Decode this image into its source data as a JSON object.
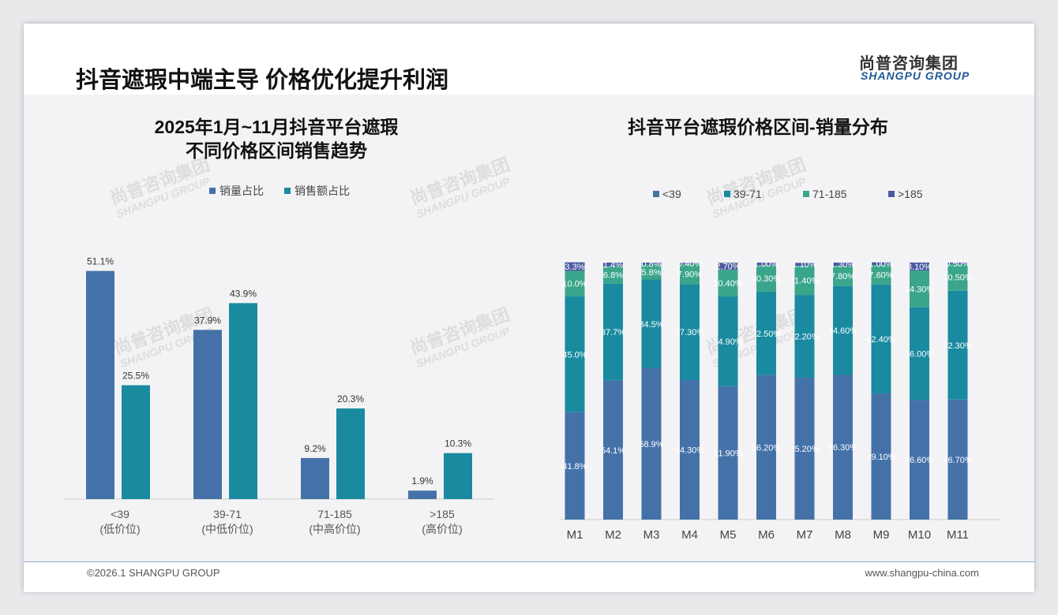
{
  "header": {
    "title": "抖音遮瑕中端主导 价格优化提升利润",
    "logo_cn": "尚普咨询集团",
    "logo_en": "SHANGPU GROUP"
  },
  "footer": {
    "copyright": "©2026.1 SHANGPU GROUP",
    "website": "www.shangpu-china.com"
  },
  "watermark": {
    "cn": "尚普咨询集团",
    "en": "SHANGPU GROUP"
  },
  "colors": {
    "lt39": "#4472a8",
    "r39_71": "#1a8aa0",
    "r71_185": "#3aa58a",
    "gt185": "#4b5aa0"
  },
  "chart_data": [
    {
      "type": "bar",
      "title_line1": "2025年1月~11月抖音平台遮瑕",
      "title_line2": "不同价格区间销售趋势",
      "categories": [
        "<39",
        "39-71",
        "71-185",
        ">185"
      ],
      "category_sub": [
        "(低价位)",
        "(中低价位)",
        "(中高价位)",
        "(高价位)"
      ],
      "series": [
        {
          "name": "销量占比",
          "values": [
            51.1,
            37.9,
            9.2,
            1.9
          ],
          "labels": [
            "51.1%",
            "37.9%",
            "9.2%",
            "1.9%"
          ]
        },
        {
          "name": "销售额占比",
          "values": [
            25.5,
            43.9,
            20.3,
            10.3
          ],
          "labels": [
            "25.5%",
            "43.9%",
            "20.3%",
            "10.3%"
          ]
        }
      ],
      "ylim": [
        0,
        55
      ],
      "legend": "top"
    },
    {
      "type": "bar",
      "stacked": true,
      "title": "抖音平台遮瑕价格区间-销量分布",
      "categories": [
        "M1",
        "M2",
        "M3",
        "M4",
        "M5",
        "M6",
        "M7",
        "M8",
        "M9",
        "M10",
        "M11"
      ],
      "series": [
        {
          "name": "<39",
          "values": [
            41.8,
            54.1,
            58.9,
            54.3,
            51.9,
            56.2,
            55.2,
            56.3,
            49.1,
            46.6,
            46.7
          ],
          "labels": [
            "41.8%",
            "54.1%",
            "58.9%",
            "54.30%",
            "51.90%",
            "56.20%",
            "55.20%",
            "56.30%",
            "49.10%",
            "46.60%",
            "46.70%"
          ]
        },
        {
          "name": "39-71",
          "values": [
            45.0,
            37.7,
            34.5,
            37.3,
            34.9,
            32.5,
            32.2,
            34.6,
            42.4,
            36.0,
            42.3
          ],
          "labels": [
            "45.0%",
            "37.7%",
            "34.5%",
            "37.30%",
            "34.90%",
            "32.50%",
            "32.20%",
            "34.60%",
            "42.40%",
            "36.00%",
            "42.30%"
          ]
        },
        {
          "name": "71-185",
          "values": [
            10.0,
            6.8,
            5.8,
            7.9,
            10.4,
            10.3,
            11.4,
            7.8,
            7.6,
            14.3,
            10.5
          ],
          "labels": [
            "10.0%",
            "6.8%",
            "5.8%",
            "7.90%",
            "10.40%",
            "10.30%",
            "11.40%",
            "7.80%",
            "7.60%",
            "14.30%",
            "10.50%"
          ]
        },
        {
          "name": ">185",
          "values": [
            3.3,
            1.4,
            0.8,
            0.4,
            2.7,
            1.0,
            1.1,
            1.3,
            1.0,
            3.1,
            0.5
          ],
          "labels": [
            "3.3%",
            "1.4%",
            "0.8%",
            "0.40%",
            "2.70%",
            "1.00%",
            "1.10%",
            "1.30%",
            "1.00%",
            "3.10%",
            "0.50%"
          ]
        }
      ],
      "ylim": [
        0,
        100
      ],
      "legend": "top"
    }
  ]
}
